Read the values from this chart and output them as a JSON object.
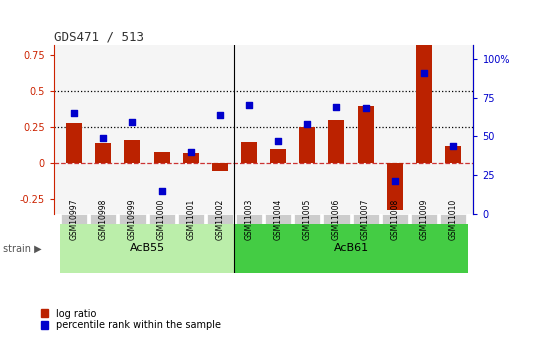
{
  "title": "GDS471 / 513",
  "samples": [
    "GSM10997",
    "GSM10998",
    "GSM10999",
    "GSM11000",
    "GSM11001",
    "GSM11002",
    "GSM11003",
    "GSM11004",
    "GSM11005",
    "GSM11006",
    "GSM11007",
    "GSM11008",
    "GSM11009",
    "GSM11010"
  ],
  "log_ratio": [
    0.28,
    0.14,
    0.16,
    0.08,
    0.07,
    -0.05,
    0.15,
    0.1,
    0.25,
    0.3,
    0.4,
    -0.32,
    0.85,
    0.12
  ],
  "percentile": [
    0.65,
    0.49,
    0.59,
    0.15,
    0.4,
    0.64,
    0.7,
    0.47,
    0.58,
    0.69,
    0.68,
    0.21,
    0.91,
    0.44
  ],
  "groups": [
    {
      "label": "AcB55",
      "start": 0,
      "end": 6,
      "color": "#bbeeaa"
    },
    {
      "label": "AcB61",
      "start": 6,
      "end": 14,
      "color": "#44cc44"
    }
  ],
  "group_separator": 5.5,
  "ylim_left": [
    -0.35,
    0.82
  ],
  "ylim_right": [
    0,
    1.09
  ],
  "yticks_left": [
    -0.25,
    0.0,
    0.25,
    0.5,
    0.75
  ],
  "yticks_right": [
    0,
    25,
    50,
    75,
    100
  ],
  "ytick_labels_left": [
    "-0.25",
    "0",
    "0.25",
    "0.5",
    "0.75"
  ],
  "ytick_labels_right": [
    "0",
    "25",
    "50",
    "75",
    "100%"
  ],
  "hlines": [
    0.25,
    0.5
  ],
  "bar_color": "#bb2200",
  "dot_color": "#0000cc",
  "zero_line_color": "#cc3333",
  "title_color": "#333333",
  "left_axis_color": "#cc2200",
  "right_axis_color": "#0000cc",
  "plot_bg_color": "#f5f5f5",
  "tick_label_bg": "#cccccc",
  "legend_log_ratio": "log ratio",
  "legend_percentile": "percentile rank within the sample",
  "strain_label": "strain",
  "arrow_char": "▶"
}
